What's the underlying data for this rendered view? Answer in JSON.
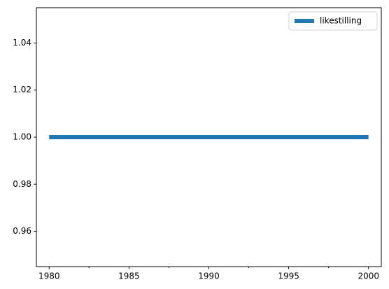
{
  "chart_data": {
    "type": "line",
    "x": [
      1980,
      1981,
      1982,
      1983,
      1984,
      1985,
      1986,
      1987,
      1988,
      1989,
      1990,
      1991,
      1992,
      1993,
      1994,
      1995,
      1996,
      1997,
      1998,
      1999,
      2000
    ],
    "series": [
      {
        "name": "likestilling",
        "color": "#1f77b4",
        "values": [
          1,
          1,
          1,
          1,
          1,
          1,
          1,
          1,
          1,
          1,
          1,
          1,
          1,
          1,
          1,
          1,
          1,
          1,
          1,
          1,
          1
        ]
      }
    ],
    "xlim": [
      1979.2,
      2000.8
    ],
    "xticks": [
      1980,
      1985,
      1990,
      1995,
      2000
    ],
    "xminorticks": [
      1982.5,
      1987.5,
      1992.5,
      1997.5
    ],
    "ylim": [
      0.945,
      1.055
    ],
    "yticks": [
      0.96,
      0.98,
      {
        "value": 1,
        "label": "1.00"
      },
      1.02,
      1.04
    ],
    "legend": "upper right",
    "grid": false
  }
}
